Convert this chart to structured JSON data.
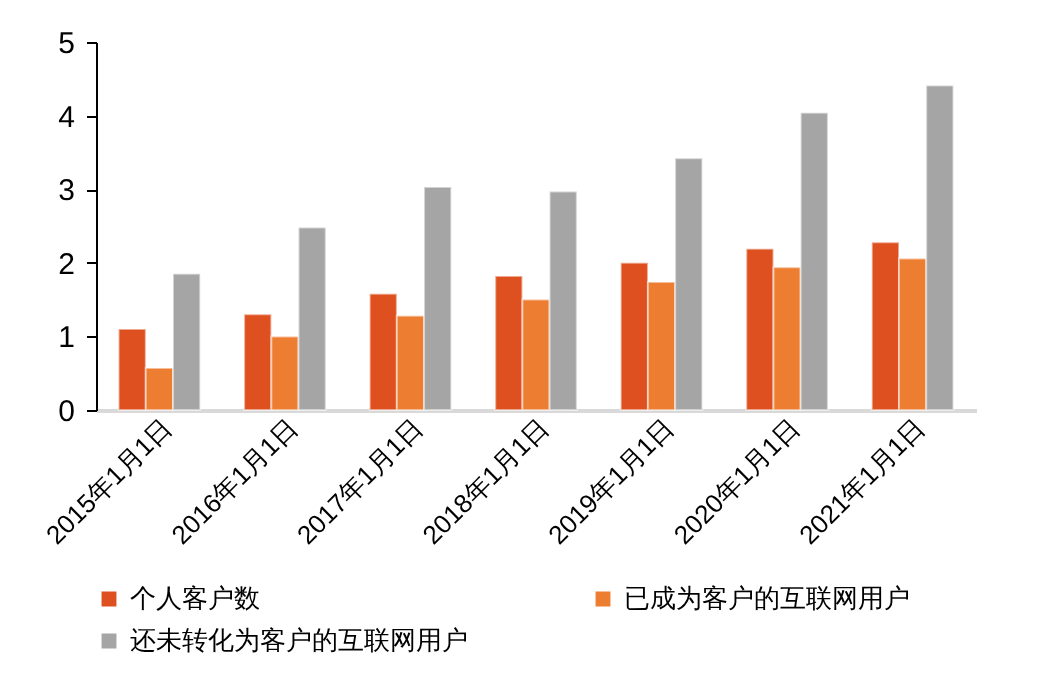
{
  "chart_data": {
    "type": "bar",
    "categories": [
      "2015年1月1日",
      "2016年1月1日",
      "2017年1月1日",
      "2018年1月1日",
      "2019年1月1日",
      "2020年1月1日",
      "2021年1月1日"
    ],
    "series": [
      {
        "name": "个人客户数",
        "color": "#df5020",
        "values": [
          1.1,
          1.3,
          1.58,
          1.82,
          2.0,
          2.19,
          2.28
        ]
      },
      {
        "name": "已成为客户的互联网用户",
        "color": "#ed7d31",
        "values": [
          0.57,
          1.0,
          1.28,
          1.5,
          1.74,
          1.94,
          2.06
        ]
      },
      {
        "name": "还未转化为客户的互联网用户",
        "color": "#a5a5a5",
        "values": [
          1.85,
          2.48,
          3.03,
          2.97,
          3.42,
          4.04,
          4.41
        ]
      }
    ],
    "ylim": [
      0,
      5
    ],
    "yticks": [
      0,
      1,
      2,
      3,
      4,
      5
    ],
    "grid": false,
    "legend": "bottom"
  }
}
